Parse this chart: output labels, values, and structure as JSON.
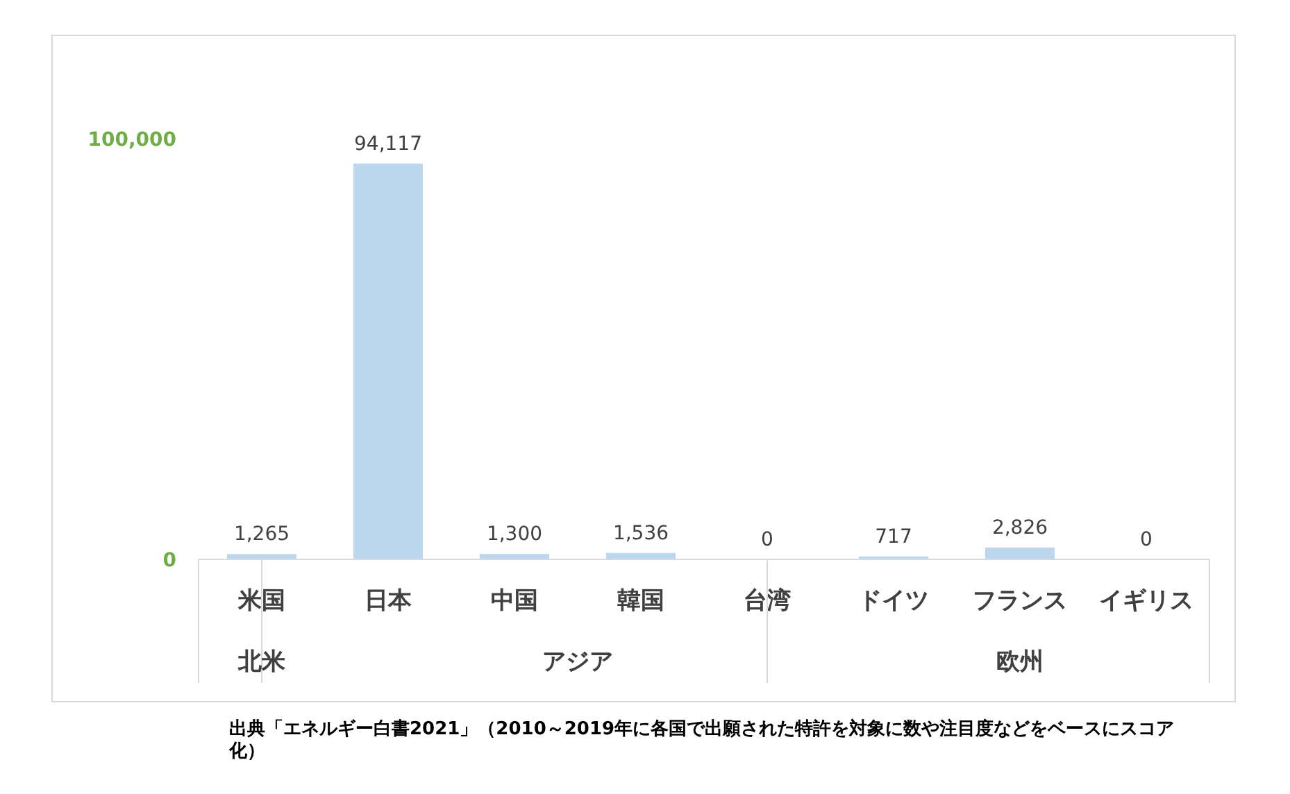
{
  "chart_data": {
    "type": "bar",
    "categories": [
      "米国",
      "日本",
      "中国",
      "韓国",
      "台湾",
      "ドイツ",
      "フランス",
      "イギリス"
    ],
    "values": [
      1265,
      94117,
      1300,
      1536,
      0,
      717,
      2826,
      0
    ],
    "value_labels": [
      "1,265",
      "94,117",
      "1,300",
      "1,536",
      "0",
      "717",
      "2,826",
      "0"
    ],
    "color": "#bdd7ee",
    "ylim": [
      0,
      100000
    ],
    "yticks": [
      {
        "value": 0,
        "label": "0"
      },
      {
        "value": 100000,
        "label": "100,000"
      }
    ],
    "annotations": [
      "北米",
      "アジア",
      "欧州",
      "出典「エネルギー白書2021」（2010～2019年に各国で出願された特許を対象に数や注目度などをベースにスコア化）"
    ]
  }
}
